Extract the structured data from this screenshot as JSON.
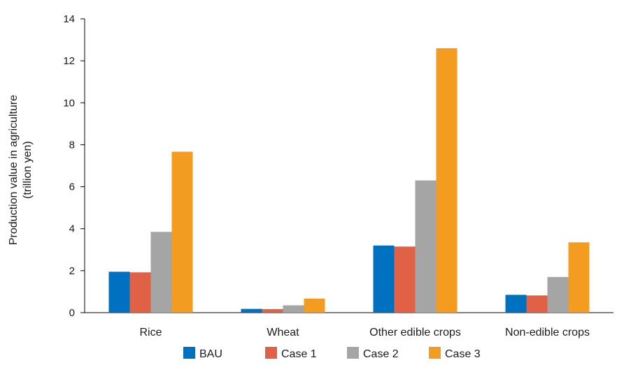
{
  "chart_data": {
    "type": "bar",
    "title": "",
    "xlabel": "",
    "ylabel": [
      "Production value in agriculture",
      "(trillion yen)"
    ],
    "ylim": [
      0,
      14
    ],
    "yticks": [
      0,
      2,
      4,
      6,
      8,
      10,
      12,
      14
    ],
    "grid": false,
    "legend_position": "bottom",
    "categories": [
      "Rice",
      "Wheat",
      "Other  edible crops",
      "Non-edible crops"
    ],
    "series": [
      {
        "name": "BAU",
        "color": "#0070c0",
        "values": [
          1.95,
          0.18,
          3.2,
          0.85
        ]
      },
      {
        "name": "Case 1",
        "color": "#e06146",
        "values": [
          1.92,
          0.17,
          3.15,
          0.82
        ]
      },
      {
        "name": "Case 2",
        "color": "#a5a5a5",
        "values": [
          3.85,
          0.35,
          6.3,
          1.7
        ]
      },
      {
        "name": "Case 3",
        "color": "#f39c1f",
        "values": [
          7.67,
          0.67,
          12.6,
          3.35
        ]
      }
    ]
  }
}
